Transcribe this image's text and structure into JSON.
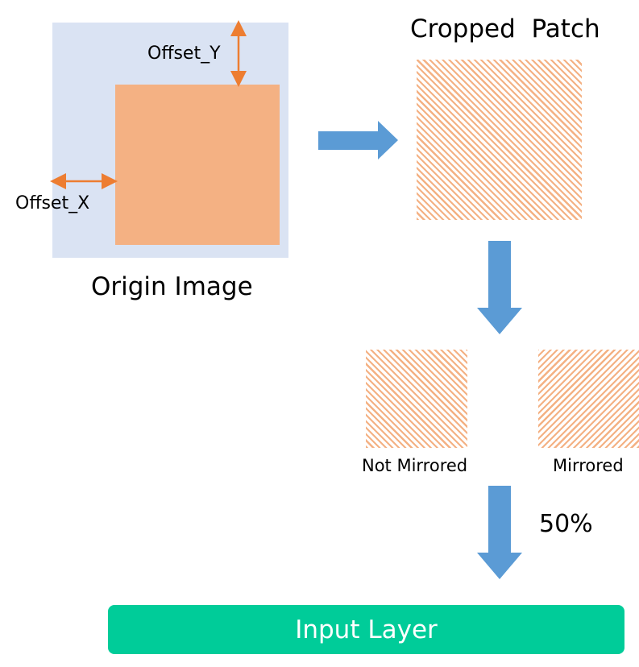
{
  "origin": {
    "title": "Origin Image",
    "offset_x_label": "Offset_X",
    "offset_y_label": "Offset_Y"
  },
  "cropped": {
    "title": "Cropped  Patch"
  },
  "flip": {
    "not_mirrored_label": "Not Mirrored",
    "mirrored_label": "Mirrored",
    "probability_label": "50%"
  },
  "output": {
    "label": "Input Layer"
  },
  "colors": {
    "origin_background": "#dae3f3",
    "crop_region": "#f4b183",
    "offset_arrows": "#ed7d31",
    "flow_arrows": "#5b9bd5",
    "input_layer": "#00cc99"
  }
}
